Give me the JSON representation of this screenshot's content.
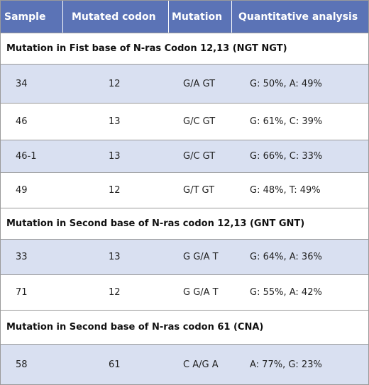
{
  "columns": [
    "Sample",
    "Mutated codon",
    "Mutation",
    "Quantitative analysis"
  ],
  "sections": [
    {
      "title": "Mutation in Fist base of N-ras Codon 12,13 (NGT NGT)",
      "rows": [
        [
          "34",
          "12",
          "G/A GT",
          "G: 50%, A: 49%"
        ],
        [
          "46",
          "13",
          "G/C GT",
          "G: 61%, C: 39%"
        ],
        [
          "46-1",
          "13",
          "G/C GT",
          "G: 66%, C: 33%"
        ],
        [
          "49",
          "12",
          "G/T GT",
          "G: 48%, T: 49%"
        ]
      ]
    },
    {
      "title": "Mutation in Second base of N-ras codon 12,13 (GNT GNT)",
      "rows": [
        [
          "33",
          "13",
          "G G/A T",
          "G: 64%, A: 36%"
        ],
        [
          "71",
          "12",
          "G G/A T",
          "G: 55%, A: 42%"
        ]
      ]
    },
    {
      "title": "Mutation in Second base of N-ras codon 61 (CNA)",
      "rows": [
        [
          "58",
          "61",
          "C A/G A",
          "A: 77%, G: 23%"
        ]
      ]
    }
  ],
  "colors": {
    "header_bg": "#5b73b6",
    "alt_row_bg": "#d9e0f1"
  }
}
